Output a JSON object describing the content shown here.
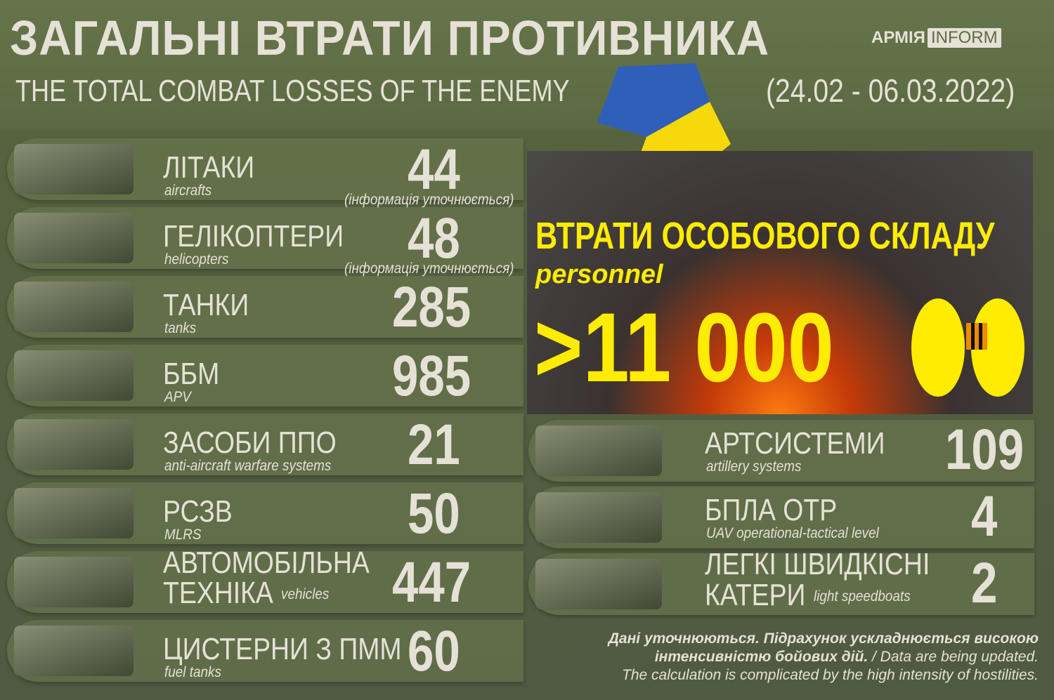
{
  "header": {
    "title": "ЗАГАЛЬНІ ВТРАТИ ПРОТИВНИКА",
    "subtitle": "THE TOTAL COMBAT LOSSES OF THE ENEMY",
    "dates": "(24.02 - 06.03.2022)",
    "logo": {
      "part1": "АРМІЯ",
      "part2": "INFORM"
    }
  },
  "colors": {
    "text": "#e6e1d6",
    "accent": "#ffec00",
    "background": "#5c6a44",
    "ukraine_blue": "#2f5fb8",
    "ukraine_yellow": "#f5d90a"
  },
  "left_items": [
    {
      "ua": "ЛІТАКИ",
      "en": "aircrafts",
      "value": "44",
      "note": "(інформація уточнюється)",
      "icon": "aircraft-image"
    },
    {
      "ua": "ГЕЛІКОПТЕРИ",
      "en": "helicopters",
      "value": "48",
      "note": "(інформація уточнюється)",
      "icon": "helicopter-image"
    },
    {
      "ua": "ТАНКИ",
      "en": "tanks",
      "value": "285",
      "icon": "tank-image"
    },
    {
      "ua": "ББМ",
      "en": "APV",
      "value": "985",
      "icon": "apv-image"
    },
    {
      "ua": "ЗАСОБИ ППО",
      "en": "anti-aircraft warfare systems",
      "value": "21",
      "icon": "air-defense-image"
    },
    {
      "ua": "РСЗВ",
      "en": "MLRS",
      "value": "50",
      "icon": "mlrs-image"
    },
    {
      "ua": "АВТОМОБІЛЬНА ТЕХНІКА",
      "ua1": "АВТОМОБІЛЬНА",
      "ua2": "ТЕХНІКА",
      "en": "vehicles",
      "value": "447",
      "icon": "truck-image"
    },
    {
      "ua": "ЦИСТЕРНИ З ПММ",
      "en": "fuel tanks",
      "value": "60",
      "icon": "fuel-truck-image"
    }
  ],
  "personnel": {
    "ua": "ВТРАТИ ОСОБОВОГО СКЛАДУ",
    "en": "personnel",
    "value": ">11 000",
    "icon": "footprints-icon"
  },
  "right_items": [
    {
      "ua": "АРТСИСТЕМИ",
      "en": "artillery systems",
      "value": "109",
      "icon": "artillery-image"
    },
    {
      "ua": "БПЛА ОТР",
      "en": "UAV operational-tactical level",
      "value": "4",
      "icon": "uav-image"
    },
    {
      "ua": "ЛЕГКІ ШВИДКІСНІ КАТЕРИ",
      "ua1": "ЛЕГКІ ШВИДКІСНІ",
      "ua2": "КАТЕРИ",
      "en": "light speedboats",
      "value": "2",
      "icon": "boat-image"
    }
  ],
  "footer": {
    "bold": "Дані уточнюються. Підрахунок ускладнюється високою інтенсивністю бойових дій.",
    "line1": "Дані уточнюються. Підрахунок ускладнюється високою",
    "line2_bold": "інтенсивністю бойових дій.",
    "line2_rest": " / Data are being updated.",
    "line3": "The calculation is complicated by the high intensity of hostilities."
  }
}
